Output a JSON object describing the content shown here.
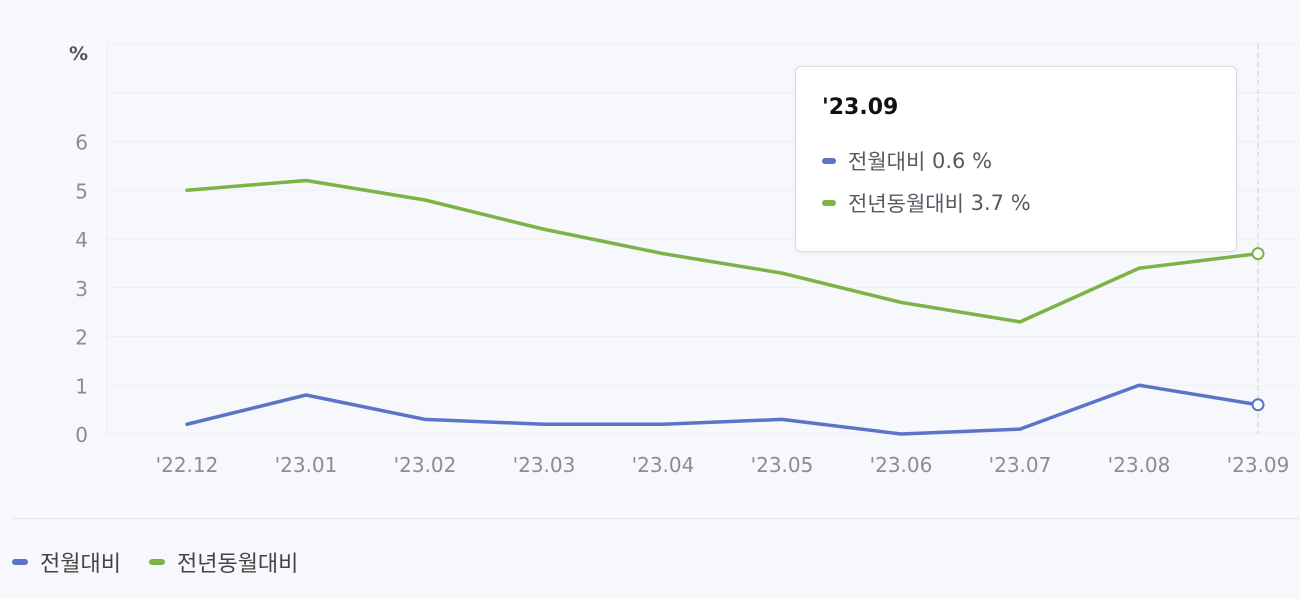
{
  "colors": {
    "series_1": "#5b74c7",
    "series_2": "#7db246",
    "grid": "#eceef2",
    "axis_text": "#8a8d94"
  },
  "chart_data": {
    "type": "line",
    "unit": "%",
    "categories": [
      "'22.12",
      "'23.01",
      "'23.02",
      "'23.03",
      "'23.04",
      "'23.05",
      "'23.06",
      "'23.07",
      "'23.08",
      "'23.09"
    ],
    "series": [
      {
        "name": "전월대비",
        "color_key": "series_1",
        "values": [
          0.2,
          0.8,
          0.3,
          0.2,
          0.2,
          0.3,
          0.0,
          0.1,
          1.0,
          0.6
        ]
      },
      {
        "name": "전년동월대비",
        "color_key": "series_2",
        "values": [
          5.0,
          5.2,
          4.8,
          4.2,
          3.7,
          3.3,
          2.7,
          2.3,
          3.4,
          3.7
        ]
      }
    ],
    "ylim": [
      0,
      8
    ],
    "yticks": [
      0,
      1,
      2,
      3,
      4,
      5,
      6
    ],
    "grid": true,
    "legend_position": "bottom-left",
    "highlight_index": 9
  },
  "tooltip": {
    "title": "'23.09",
    "rows": [
      {
        "label": "전월대비",
        "value": "0.6",
        "unit": "%"
      },
      {
        "label": "전년동월대비",
        "value": "3.7",
        "unit": "%"
      }
    ]
  },
  "legend": {
    "items": [
      {
        "label": "전월대비"
      },
      {
        "label": "전년동월대비"
      }
    ]
  }
}
